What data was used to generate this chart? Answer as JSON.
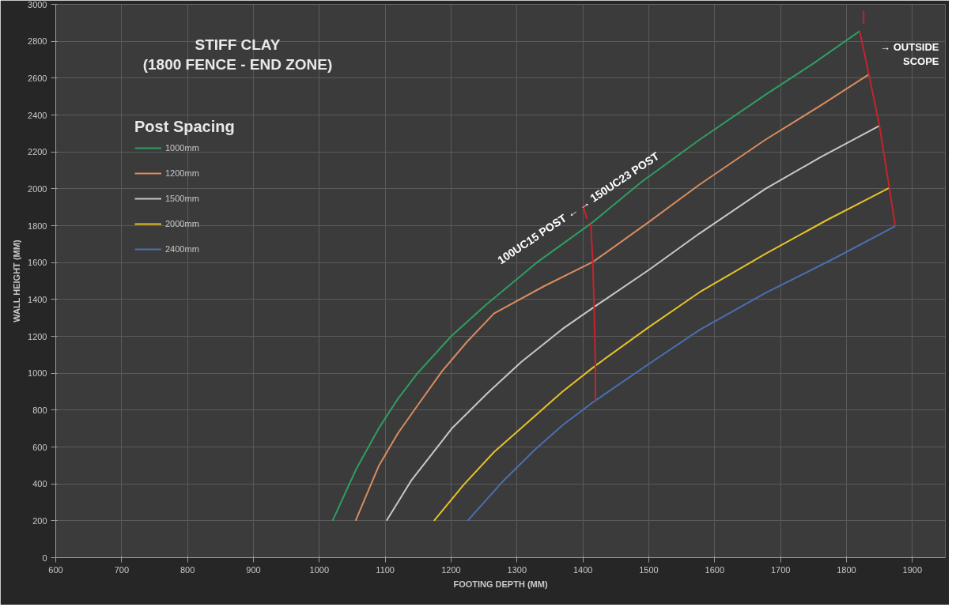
{
  "chart_data": {
    "type": "line",
    "title": "STIFF CLAY\n(1800 FENCE - END ZONE)",
    "xlabel": "FOOTING DEPTH (MM)",
    "ylabel": "WALL HEIGHT (MM)",
    "legend_title": "Post Spacing",
    "xlim": [
      600,
      1950
    ],
    "ylim": [
      0,
      3000
    ],
    "xticks": [
      600,
      700,
      800,
      900,
      1000,
      1100,
      1200,
      1300,
      1400,
      1500,
      1600,
      1700,
      1800,
      1900
    ],
    "yticks": [
      0,
      200,
      400,
      600,
      800,
      1000,
      1200,
      1400,
      1600,
      1800,
      2000,
      2200,
      2400,
      2600,
      2800,
      3000
    ],
    "grid": true,
    "legend": "top left",
    "line_style": "solid",
    "marker": "none",
    "series": [
      {
        "name": "1000mm",
        "color": "#2e9e62",
        "x": [
          1020,
          1056,
          1090,
          1119,
          1149,
          1200,
          1252,
          1330,
          1412,
          1490,
          1577,
          1677,
          1750,
          1820
        ],
        "values": [
          200,
          480,
          700,
          860,
          1000,
          1200,
          1368,
          1600,
          1811,
          2040,
          2266,
          2510,
          2680,
          2855
        ]
      },
      {
        "name": "1200mm",
        "color": "#d98c5f",
        "x": [
          1055,
          1090,
          1119,
          1152,
          1186,
          1224,
          1265,
          1340,
          1415,
          1500,
          1577,
          1677,
          1760,
          1834
        ],
        "values": [
          200,
          496,
          673,
          840,
          1010,
          1170,
          1324,
          1470,
          1603,
          1820,
          2023,
          2266,
          2450,
          2620
        ]
      },
      {
        "name": "1500mm",
        "color": "#c8c8c8",
        "x": [
          1102,
          1140,
          1202,
          1256,
          1306,
          1369,
          1417,
          1500,
          1577,
          1677,
          1760,
          1850
        ],
        "values": [
          200,
          421,
          704,
          895,
          1060,
          1240,
          1359,
          1560,
          1758,
          2000,
          2170,
          2342
        ]
      },
      {
        "name": "2000mm",
        "color": "#e6c229",
        "x": [
          1174,
          1219,
          1265,
          1315,
          1369,
          1419,
          1500,
          1577,
          1677,
          1770,
          1865
        ],
        "values": [
          200,
          395,
          572,
          730,
          900,
          1041,
          1250,
          1439,
          1647,
          1830,
          2005
        ]
      },
      {
        "name": "2400mm",
        "color": "#4a6fb0",
        "x": [
          1225,
          1277,
          1327,
          1369,
          1415,
          1500,
          1577,
          1677,
          1780,
          1874
        ],
        "values": [
          200,
          408,
          585,
          718,
          842,
          1050,
          1235,
          1435,
          1620,
          1797
        ]
      },
      {
        "color": "#c8232c",
        "x": [
          1412,
          1415,
          1417,
          1419,
          1419
        ],
        "values": [
          1811,
          1603,
          1359,
          1041,
          842
        ]
      },
      {
        "color": "#c8232c",
        "x": [
          1820,
          1834,
          1850,
          1865,
          1874
        ],
        "values": [
          2855,
          2620,
          2342,
          2005,
          1797
        ]
      },
      {
        "color": "#c8232c",
        "x": [
          1400,
          1406
        ],
        "values": [
          1912,
          1837
        ]
      },
      {
        "color": "#c8232c",
        "x": [
          1826,
          1826
        ],
        "values": [
          2966,
          2895
        ]
      }
    ],
    "annotations": [
      {
        "text": "100UC15 POST ← → 150UC23 POST",
        "x": 1403,
        "y": 1850
      },
      "→ OUTSIDE\nSCOPE"
    ]
  }
}
